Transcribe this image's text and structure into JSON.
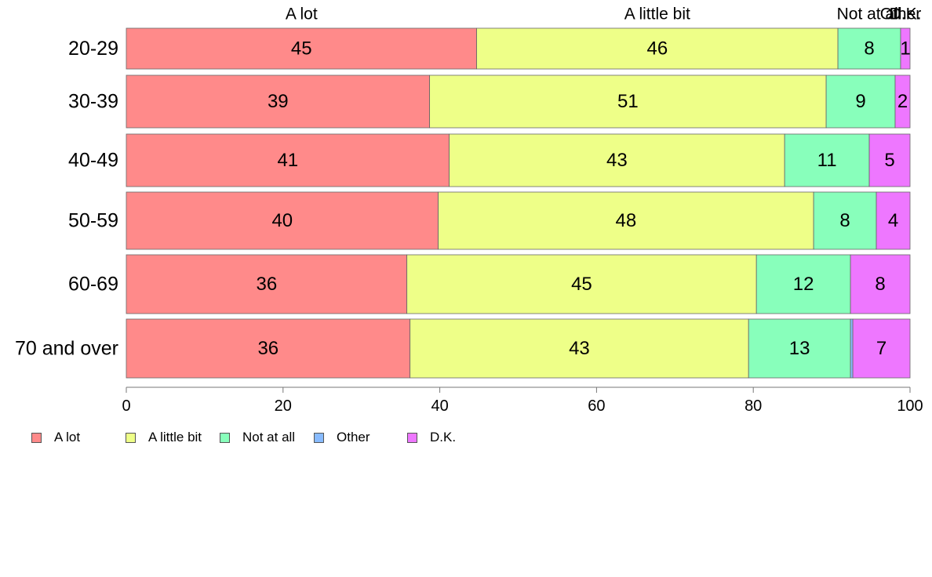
{
  "chart_data": {
    "type": "bar",
    "orientation": "horizontal",
    "stacked": true,
    "categories": [
      "20-29",
      "30-39",
      "40-49",
      "50-59",
      "60-69",
      "70 and over"
    ],
    "series": [
      {
        "name": "A lot",
        "color": "#ff8a8a",
        "values": [
          44.7,
          38.7,
          41.2,
          39.8,
          35.8,
          36.2
        ],
        "labels": [
          "45",
          "39",
          "41",
          "40",
          "36",
          "36"
        ]
      },
      {
        "name": "A little bit",
        "color": "#eeff88",
        "values": [
          46.1,
          50.6,
          42.8,
          47.9,
          44.6,
          43.2
        ],
        "labels": [
          "46",
          "51",
          "43",
          "48",
          "45",
          "43"
        ]
      },
      {
        "name": "Not at all",
        "color": "#88ffbb",
        "values": [
          8.0,
          8.8,
          10.8,
          8.0,
          12.0,
          13.0
        ],
        "labels": [
          "8",
          "9",
          "11",
          "8",
          "12",
          "13"
        ]
      },
      {
        "name": "Other",
        "color": "#88bbff",
        "values": [
          0.0,
          0.0,
          0.0,
          0.0,
          0.0,
          0.3
        ],
        "labels": [
          "",
          "",
          "",
          "",
          "",
          ""
        ]
      },
      {
        "name": "D.K.",
        "color": "#ee77ff",
        "values": [
          1.2,
          1.9,
          5.2,
          4.3,
          7.6,
          7.3
        ],
        "labels": [
          "1",
          "2",
          "5",
          "4",
          "8",
          "7"
        ]
      }
    ],
    "top_labels": [
      "A lot",
      "A little bit",
      "Not at all",
      "Other",
      "D.K."
    ],
    "xlim": [
      0,
      100
    ],
    "xticks": [
      "0",
      "20",
      "40",
      "60",
      "80",
      "100"
    ],
    "legend_position": "bottom-left",
    "grid": false
  }
}
